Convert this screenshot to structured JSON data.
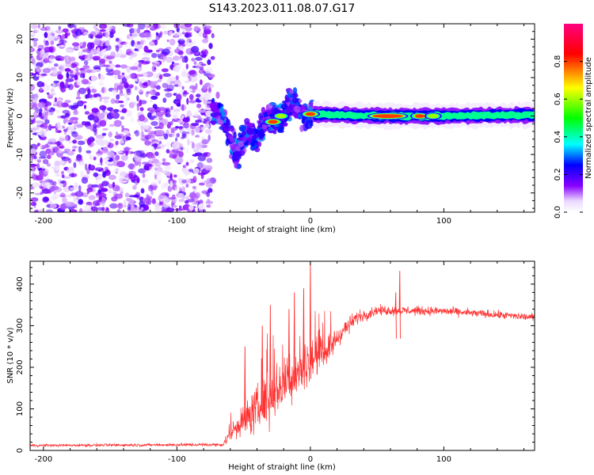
{
  "title": "S143.2023.011.08.07.G17",
  "chart_data": [
    {
      "type": "heatmap",
      "xlabel": "Height of straight line (km)",
      "ylabel": "Frequency (Hz)",
      "xlim": [
        -210,
        168
      ],
      "ylim": [
        -25,
        24
      ],
      "xticks": [
        -200,
        -100,
        0,
        100
      ],
      "yticks": [
        -20,
        -10,
        0,
        10,
        20
      ],
      "colorbar": {
        "label": "Normalized spectral amplitude",
        "range": [
          0,
          1
        ],
        "ticks": [
          "0.0",
          "0.2",
          "0.4",
          "0.6",
          "0.8"
        ],
        "colors": [
          "#ffffff",
          "#8800ff",
          "#0000ff",
          "#00ffff",
          "#00ff00",
          "#ffff00",
          "#ff0000",
          "#ff0080"
        ]
      },
      "noise_region": {
        "x": [
          -210,
          -73
        ],
        "freq": [
          -25,
          24
        ],
        "typical_amplitude": 0.15
      },
      "ridge": [
        {
          "x": -73,
          "freq": 2
        },
        {
          "x": -67,
          "freq": 0.2
        },
        {
          "x": -62,
          "freq": -4
        },
        {
          "x": -55,
          "freq": -10
        },
        {
          "x": -48,
          "freq": -4
        },
        {
          "x": -40,
          "freq": -6
        },
        {
          "x": -32,
          "freq": 0
        },
        {
          "x": -26,
          "freq": -2
        },
        {
          "x": -18,
          "freq": 2
        },
        {
          "x": -12,
          "freq": 4
        },
        {
          "x": -7,
          "freq": 0
        },
        {
          "x": 0,
          "freq": 0.5
        },
        {
          "x": 50,
          "freq": 0
        },
        {
          "x": 100,
          "freq": 0
        },
        {
          "x": 168,
          "freq": 0.3
        }
      ],
      "hotspots": [
        {
          "x": -60,
          "freq": 0,
          "amplitude": 0.15
        },
        {
          "x": -55,
          "freq": -10,
          "amplitude": 0.3
        },
        {
          "x": -45,
          "freq": -4,
          "amplitude": 0.25
        },
        {
          "x": -28,
          "freq": -1.5,
          "amplitude": 0.85
        },
        {
          "x": -22,
          "freq": 0,
          "amplitude": 0.7
        },
        {
          "x": 0,
          "freq": 0.5,
          "amplitude": 0.85
        },
        {
          "x": 58,
          "freq": 0,
          "amplitude": 0.9
        },
        {
          "x": 82,
          "freq": 0,
          "amplitude": 0.85
        },
        {
          "x": 92,
          "freq": 0,
          "amplitude": 0.75
        }
      ]
    },
    {
      "type": "line",
      "xlabel": "Height of straight line (km)",
      "ylabel": "SNR (10 * v/v)",
      "xlim": [
        -210,
        168
      ],
      "ylim": [
        0,
        455
      ],
      "xticks": [
        -200,
        -100,
        0,
        100
      ],
      "yticks": [
        0,
        100,
        200,
        300,
        400
      ],
      "series": [
        {
          "color": "#ff3030",
          "envelope": [
            {
              "x": -210,
              "mean": 12,
              "noise": 5
            },
            {
              "x": -65,
              "mean": 14,
              "noise": 6
            },
            {
              "x": -58,
              "mean": 50,
              "noise": 40
            },
            {
              "x": -50,
              "mean": 70,
              "noise": 60
            },
            {
              "x": -40,
              "mean": 100,
              "noise": 90
            },
            {
              "x": -30,
              "mean": 130,
              "noise": 100
            },
            {
              "x": -20,
              "mean": 160,
              "noise": 100
            },
            {
              "x": -10,
              "mean": 190,
              "noise": 90
            },
            {
              "x": 0,
              "mean": 215,
              "noise": 70
            },
            {
              "x": 15,
              "mean": 250,
              "noise": 50
            },
            {
              "x": 25,
              "mean": 290,
              "noise": 35
            },
            {
              "x": 35,
              "mean": 320,
              "noise": 25
            },
            {
              "x": 50,
              "mean": 337,
              "noise": 18
            },
            {
              "x": 100,
              "mean": 335,
              "noise": 16
            },
            {
              "x": 168,
              "mean": 320,
              "noise": 14
            }
          ],
          "spikes": [
            {
              "x": 0,
              "y": 455
            },
            {
              "x": -5,
              "y": 390
            },
            {
              "x": -12,
              "y": 380
            },
            {
              "x": -30,
              "y": 350
            },
            {
              "x": -16,
              "y": 340
            },
            {
              "x": 67,
              "y": 432
            },
            {
              "x": 64,
              "y": 380
            },
            {
              "x": -49,
              "y": 250
            },
            {
              "x": -36,
              "y": 300
            }
          ]
        }
      ]
    }
  ]
}
